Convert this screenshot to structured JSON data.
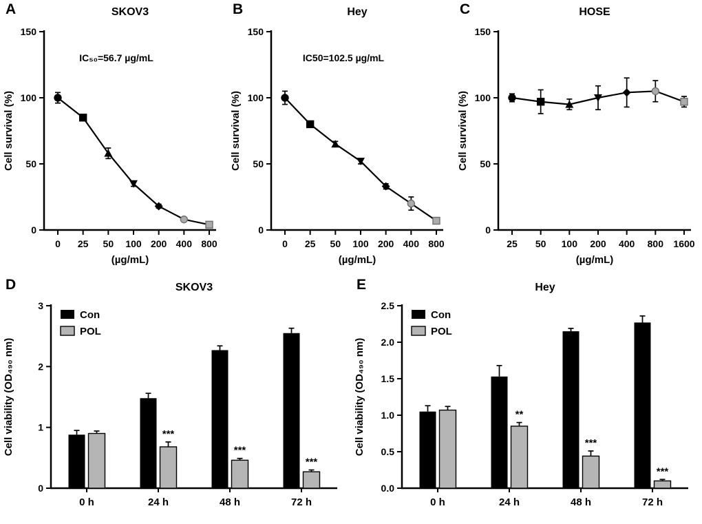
{
  "figure": {
    "background": "#ffffff",
    "ink": "#000000",
    "gray_fill": "#b5b5b5",
    "gray_marker": "#ababab"
  },
  "chart_data": [
    {
      "panel": "A",
      "type": "line",
      "title": "SKOV3",
      "annotation": "IC₅₀=56.7 µg/mL",
      "categories": [
        "0",
        "25",
        "50",
        "100",
        "200",
        "400",
        "800"
      ],
      "values": [
        100,
        85,
        58,
        35,
        18,
        8,
        4
      ],
      "errors": [
        4,
        2,
        4,
        2,
        1.5,
        1,
        1
      ],
      "marker_shapes": [
        "circle",
        "square",
        "triangle-up",
        "triangle-down",
        "diamond",
        "circle",
        "square"
      ],
      "marker_fills": [
        "#000000",
        "#000000",
        "#000000",
        "#000000",
        "#000000",
        "#ababab",
        "#ababab"
      ],
      "xlabel": "(µg/mL)",
      "ylabel": "Cell survival (%)",
      "ylim": [
        0,
        150
      ],
      "yticks": [
        0,
        50,
        100,
        150
      ],
      "grid": false,
      "legend_position": "none"
    },
    {
      "panel": "B",
      "type": "line",
      "title": "Hey",
      "annotation": "IC50=102.5 µg/mL",
      "categories": [
        "0",
        "25",
        "50",
        "100",
        "200",
        "400",
        "800"
      ],
      "values": [
        100,
        80,
        65,
        52,
        33,
        20,
        7
      ],
      "errors": [
        5,
        2,
        2,
        2,
        2,
        5,
        2
      ],
      "marker_shapes": [
        "circle",
        "square",
        "triangle-up",
        "triangle-down",
        "diamond",
        "circle",
        "square"
      ],
      "marker_fills": [
        "#000000",
        "#000000",
        "#000000",
        "#000000",
        "#000000",
        "#ababab",
        "#ababab"
      ],
      "xlabel": "(µg/mL)",
      "ylabel": "Cell survival (%)",
      "ylim": [
        0,
        150
      ],
      "yticks": [
        0,
        50,
        100,
        150
      ],
      "grid": false,
      "legend_position": "none"
    },
    {
      "panel": "C",
      "type": "line",
      "title": "HOSE",
      "annotation": "",
      "categories": [
        "25",
        "50",
        "100",
        "200",
        "400",
        "800",
        "1600"
      ],
      "values": [
        100,
        97,
        95,
        100,
        104,
        105,
        97
      ],
      "errors": [
        3,
        9,
        4,
        9,
        11,
        8,
        4
      ],
      "marker_shapes": [
        "circle",
        "square",
        "triangle-up",
        "triangle-down",
        "diamond",
        "circle",
        "square"
      ],
      "marker_fills": [
        "#000000",
        "#000000",
        "#000000",
        "#000000",
        "#000000",
        "#ababab",
        "#ababab"
      ],
      "xlabel": "(µg/mL)",
      "ylabel": "Cell survival (%)",
      "ylim": [
        0,
        150
      ],
      "yticks": [
        0,
        50,
        100,
        150
      ],
      "grid": false,
      "legend_position": "none"
    },
    {
      "panel": "D",
      "type": "bar",
      "title": "SKOV3",
      "categories": [
        "0 h",
        "24 h",
        "48 h",
        "72 h"
      ],
      "series": [
        {
          "name": "Con",
          "color": "#000000",
          "values": [
            0.88,
            1.48,
            2.27,
            2.55
          ],
          "errors": [
            0.07,
            0.08,
            0.07,
            0.08
          ],
          "sig": [
            "",
            "",
            "",
            ""
          ]
        },
        {
          "name": "POL",
          "color": "#b5b5b5",
          "values": [
            0.9,
            0.68,
            0.46,
            0.27
          ],
          "errors": [
            0.04,
            0.08,
            0.03,
            0.03
          ],
          "sig": [
            "",
            "***",
            "***",
            "***"
          ]
        }
      ],
      "xlabel": "",
      "ylabel": "Cell viability (OD₄₉₀ nm)",
      "ylim": [
        0,
        3
      ],
      "yticks": [
        0,
        1,
        2,
        3
      ],
      "ytick_labels": [
        "0",
        "1",
        "2",
        "3"
      ],
      "grid": false,
      "legend_position": "top-left"
    },
    {
      "panel": "E",
      "type": "bar",
      "title": "Hey",
      "categories": [
        "0 h",
        "24 h",
        "48 h",
        "72 h"
      ],
      "series": [
        {
          "name": "Con",
          "color": "#000000",
          "values": [
            1.05,
            1.53,
            2.15,
            2.27
          ],
          "errors": [
            0.08,
            0.15,
            0.04,
            0.09
          ],
          "sig": [
            "",
            "",
            "",
            ""
          ]
        },
        {
          "name": "POL",
          "color": "#b5b5b5",
          "values": [
            1.07,
            0.85,
            0.44,
            0.1
          ],
          "errors": [
            0.05,
            0.05,
            0.07,
            0.02
          ],
          "sig": [
            "",
            "**",
            "***",
            "***"
          ]
        }
      ],
      "xlabel": "",
      "ylabel": "Cell viability (OD₄₉₀ nm)",
      "ylim": [
        0,
        2.5
      ],
      "yticks": [
        0,
        0.5,
        1,
        1.5,
        2,
        2.5
      ],
      "ytick_labels": [
        "0.0",
        "0.5",
        "1.0",
        "1.5",
        "2.0",
        "2.5"
      ],
      "grid": false,
      "legend_position": "top-left"
    }
  ]
}
